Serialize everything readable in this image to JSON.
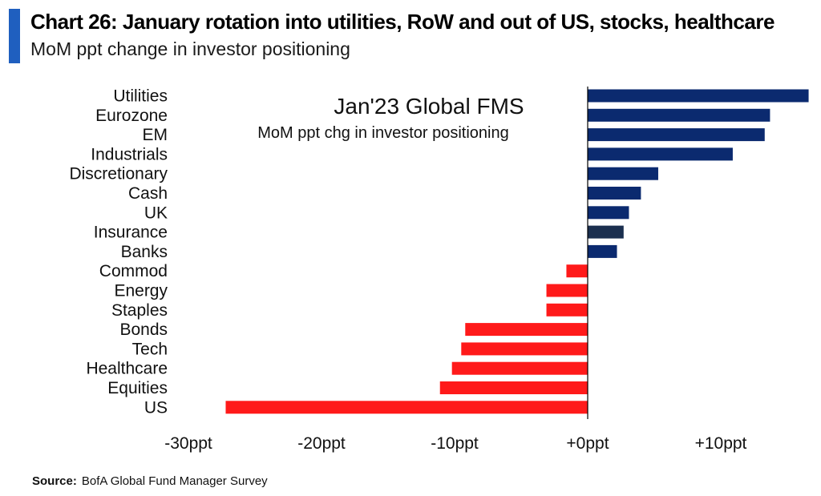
{
  "header": {
    "title": "Chart 26: January rotation into utilities, RoW and out of US, stocks, healthcare",
    "subtitle": "MoM ppt change in investor positioning"
  },
  "footer": {
    "source_label": "Source:",
    "source_text": "BofA Global Fund Manager Survey"
  },
  "colors": {
    "accent": "#1f5fbf",
    "positive": "#0b2a6f",
    "negative": "#ff1a1a",
    "highlight": "#1b2f4f"
  },
  "chart_data": {
    "type": "bar",
    "orientation": "horizontal",
    "annotation_title": "Jan'23 Global FMS",
    "annotation_subtitle": "MoM ppt chg in investor positioning",
    "categories": [
      "Utilities",
      "Eurozone",
      "EM",
      "Industrials",
      "Discretionary",
      "Cash",
      "UK",
      "Insurance",
      "Banks",
      "Commod",
      "Energy",
      "Staples",
      "Bonds",
      "Tech",
      "Healthcare",
      "Equities",
      "US"
    ],
    "values": [
      16.6,
      13.7,
      13.3,
      10.9,
      5.3,
      4.0,
      3.1,
      2.7,
      2.2,
      -1.6,
      -3.1,
      -3.1,
      -9.2,
      -9.5,
      -10.2,
      -11.1,
      -27.2
    ],
    "xlim": [
      -30,
      12
    ],
    "xticks": [
      -30,
      -20,
      -10,
      0,
      10
    ],
    "xtick_labels": [
      "-30ppt",
      "-20ppt",
      "-10ppt",
      "+0ppt",
      "+10ppt"
    ],
    "grid": false
  }
}
